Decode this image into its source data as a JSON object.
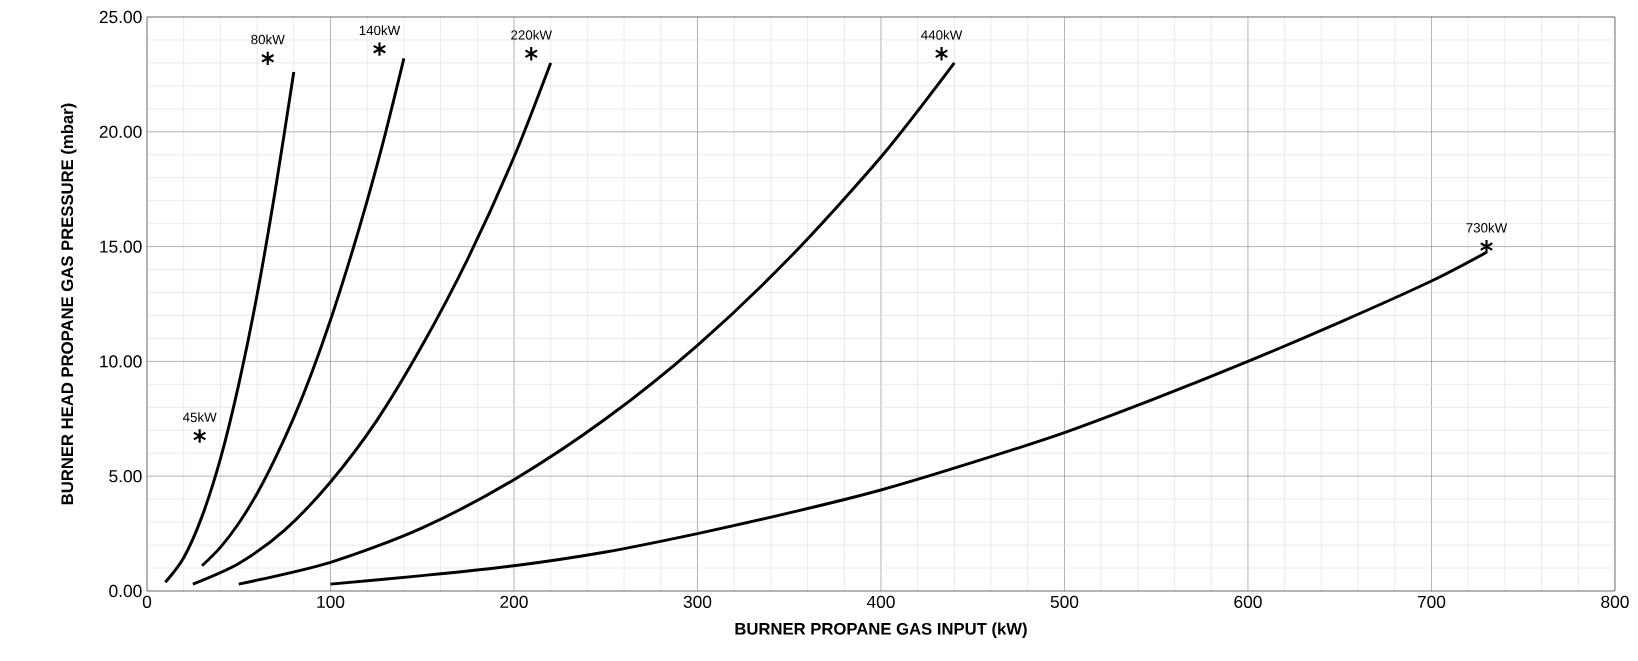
{
  "chart_data": {
    "type": "line",
    "xlabel": "BURNER PROPANE GAS INPUT (kW)",
    "ylabel": "BURNER HEAD PROPANE GAS PRESSURE (mbar)",
    "xlim": [
      0,
      800
    ],
    "xticks": [
      0,
      100,
      200,
      300,
      400,
      500,
      600,
      700,
      800
    ],
    "ylim": [
      0,
      25
    ],
    "yticks": [
      {
        "value": 0,
        "label": "0.00"
      },
      {
        "value": 5,
        "label": "5.00"
      },
      {
        "value": 10,
        "label": "10.00"
      },
      {
        "value": 15,
        "label": "15.00"
      },
      {
        "value": 20,
        "label": "20.00"
      },
      {
        "value": 25,
        "label": "25.00"
      }
    ],
    "grid": true,
    "marker": "none",
    "line_style": "solid",
    "series": [
      {
        "color": "#000000",
        "x": [
          10,
          20,
          30,
          40,
          50,
          60,
          70,
          80
        ],
        "values": [
          0.38,
          1.45,
          3.25,
          5.75,
          9,
          12.9,
          17.5,
          22.6
        ]
      },
      {
        "color": "#000000",
        "x": [
          30,
          40,
          50,
          60,
          70,
          80,
          90,
          100,
          110,
          120,
          130,
          140
        ],
        "values": [
          1.1,
          1.9,
          2.95,
          4.25,
          5.8,
          7.55,
          9.55,
          11.8,
          14.3,
          17,
          19.95,
          23.2
        ]
      },
      {
        "color": "#000000",
        "x": [
          25,
          50,
          75,
          100,
          125,
          150,
          175,
          200,
          220
        ],
        "values": [
          0.3,
          1.2,
          2.65,
          4.75,
          7.4,
          10.7,
          14.5,
          18.9,
          23
        ]
      },
      {
        "color": "#000000",
        "x": [
          50,
          100,
          150,
          200,
          250,
          300,
          350,
          400,
          440
        ],
        "values": [
          0.3,
          1.25,
          2.75,
          4.85,
          7.5,
          10.7,
          14.5,
          18.9,
          23
        ]
      },
      {
        "color": "#000000",
        "x": [
          100,
          150,
          200,
          250,
          300,
          350,
          400,
          450,
          500,
          550,
          600,
          650,
          700,
          730
        ],
        "values": [
          0.3,
          0.67,
          1.1,
          1.7,
          2.5,
          3.4,
          4.4,
          5.6,
          6.9,
          8.4,
          10,
          11.7,
          13.5,
          14.75
        ]
      },
      {
        "type": "scatter",
        "marker": "cross",
        "color": "#000000",
        "x": [
          28.7,
          65.8,
          126.7,
          209.4,
          433,
          730
        ],
        "values": [
          6.75,
          23.2,
          23.6,
          23.4,
          23.4,
          15
        ]
      }
    ],
    "annotations": [
      {
        "text": "45kW",
        "x": 28.7,
        "y": 6.75
      },
      {
        "text": "80kW",
        "x": 65.8,
        "y": 23.2
      },
      {
        "text": "140kW",
        "x": 126.7,
        "y": 23.6
      },
      {
        "text": "220kW",
        "x": 209.4,
        "y": 23.4
      },
      {
        "text": "440kW",
        "x": 433,
        "y": 23.4
      },
      {
        "text": "730kW",
        "x": 730,
        "y": 15
      }
    ]
  }
}
